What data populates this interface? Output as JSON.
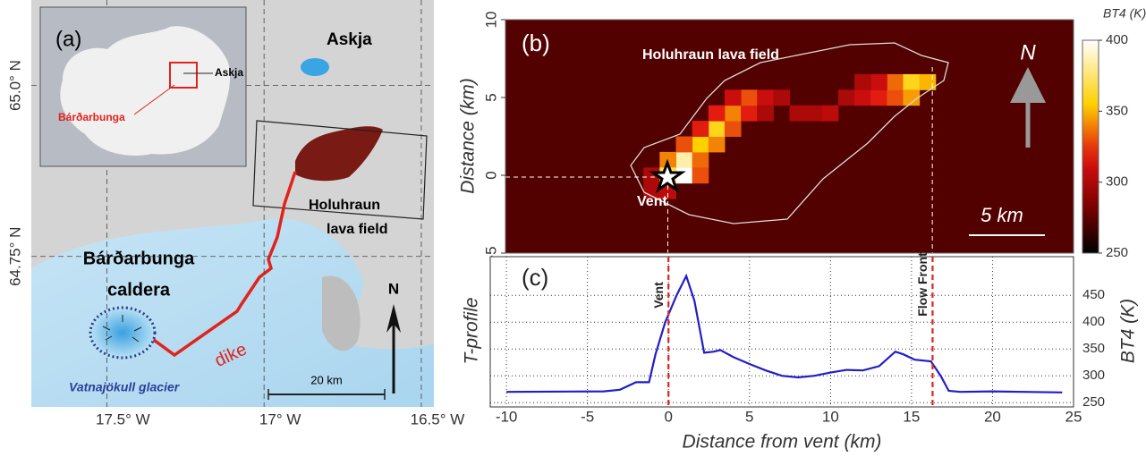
{
  "chart_data": [
    {
      "type": "map",
      "panel": "(a)",
      "xticks": [
        {
          "value": -17.5,
          "label": "17.5° W"
        },
        {
          "value": -17.0,
          "label": "17° W"
        },
        {
          "value": -16.5,
          "label": "16.5° W"
        }
      ],
      "xlim": [
        -17.74,
        -16.46
      ],
      "yticks": [
        {
          "value": 65.0,
          "label": "65.0° N"
        },
        {
          "value": 64.75,
          "label": "64.75° N"
        }
      ],
      "ylim": [
        64.53,
        65.125
      ],
      "annotations": [
        "Askja",
        "Holuhraun",
        "lava field",
        "Bárðarbunga",
        "caldera",
        "dike",
        "N",
        "Vatnajökull glacier",
        "20 km"
      ],
      "inset_annotations": [
        "Askja",
        "Bárðarbunga"
      ]
    },
    {
      "type": "heatmap",
      "panel": "(b)",
      "ylabel": "Distance (km)",
      "xlim": [
        -10,
        25
      ],
      "ylim": [
        -5,
        10
      ],
      "yticks": [
        -5,
        0,
        5,
        10
      ],
      "background": 272,
      "cells": [
        [
          1,
          0,
          400
        ],
        [
          1,
          1,
          385
        ],
        [
          0,
          1,
          340
        ],
        [
          2,
          1,
          335
        ],
        [
          2,
          2,
          355
        ],
        [
          1,
          2,
          330
        ],
        [
          3,
          2,
          340
        ],
        [
          3,
          3,
          360
        ],
        [
          2,
          3,
          320
        ],
        [
          4,
          3,
          330
        ],
        [
          4,
          4,
          340
        ],
        [
          3,
          4,
          320
        ],
        [
          5,
          4,
          320
        ],
        [
          5,
          5,
          330
        ],
        [
          4,
          5,
          310
        ],
        [
          6,
          5,
          310
        ],
        [
          7,
          5,
          300
        ],
        [
          6,
          4,
          300
        ],
        [
          8,
          4,
          300
        ],
        [
          9,
          4,
          300
        ],
        [
          10,
          4,
          305
        ],
        [
          11,
          5,
          300
        ],
        [
          12,
          5,
          310
        ],
        [
          13,
          5,
          320
        ],
        [
          14,
          5,
          330
        ],
        [
          14,
          6,
          335
        ],
        [
          15,
          6,
          360
        ],
        [
          15,
          5,
          345
        ],
        [
          16,
          6,
          350
        ],
        [
          13,
          6,
          310
        ],
        [
          12,
          6,
          300
        ],
        [
          -1,
          -1,
          300
        ],
        [
          0,
          -1,
          305
        ],
        [
          -1,
          0,
          300
        ],
        [
          0,
          0,
          370
        ],
        [
          2,
          0,
          330
        ]
      ],
      "colorbar": {
        "title": "BT4 (K)",
        "clim": [
          250,
          400
        ],
        "ticks": [
          250,
          300,
          350,
          400
        ]
      },
      "annotations": [
        "Holuhraun lava field",
        "Vent",
        "N",
        "5 km"
      ]
    },
    {
      "type": "line",
      "panel": "(c)",
      "xlabel": "Distance from vent (km)",
      "ylabel": "T-profile",
      "y2label": "BT4 (K)",
      "xlim": [
        -11,
        25
      ],
      "xticks": [
        -10,
        -5,
        0,
        5,
        10,
        15,
        20,
        25
      ],
      "ylim": [
        242,
        522
      ],
      "yticks": [
        250,
        300,
        350,
        400,
        450
      ],
      "grid": true,
      "series": [
        {
          "color": "#1f1fc8",
          "x": [
            -10,
            -4,
            -3,
            -2,
            -1.2,
            -0.8,
            -0.2,
            0.5,
            1.1,
            1.6,
            2.2,
            2.8,
            3.2,
            4,
            5,
            6,
            7,
            8,
            9,
            10,
            11,
            12,
            13,
            14,
            14.5,
            15.2,
            16.2,
            16.8,
            17.3,
            18,
            20,
            22,
            24.3
          ],
          "values": [
            270,
            271,
            274,
            288,
            288,
            340,
            400,
            450,
            486,
            440,
            343,
            345,
            348,
            335,
            322,
            310,
            300,
            297,
            300,
            306,
            311,
            310,
            318,
            345,
            340,
            330,
            327,
            300,
            272,
            270,
            271,
            270,
            269
          ]
        }
      ],
      "markers": [
        {
          "x": 0,
          "label": "Vent"
        },
        {
          "x": 16.3,
          "label": "Flow Front"
        }
      ]
    }
  ]
}
